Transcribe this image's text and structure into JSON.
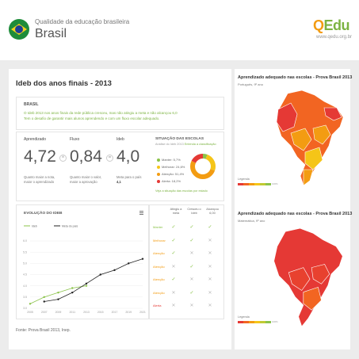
{
  "header": {
    "subtitle": "Qualidade da educação brasileira",
    "title": "Brasil",
    "logo_q": "Q",
    "logo_rest": "Edu",
    "site": "www.qedu.org.br"
  },
  "ideb": {
    "title": "Ideb dos anos finais - 2013",
    "info_label": "BRASIL",
    "info_text_1": "O Ideb 2013 nos anos finais da rede pública cresceu, mas não atingiu a meta e não alcançou 6,0",
    "info_text_2": "Tem o desafio de garantir mais alunos aprendendo e com um fluxo escolar adequado.",
    "metrics": [
      {
        "label": "Aprendizado",
        "value": "4,72",
        "desc": "Quanto maior a nota, maior o aprendizado"
      },
      {
        "label": "Fluxo",
        "value": "0,84",
        "desc": "Quanto maior o valor, maior a aprovação"
      },
      {
        "label": "Ideb",
        "value": "4,0",
        "desc": "Meta para o país",
        "desc_value": "4,1"
      }
    ],
    "op_times": "×",
    "op_equals": "=",
    "situacao": {
      "title": "SITUAÇÃO DAS ESCOLAS",
      "subtitle": "Análise do Ideb 2013",
      "subtitle_link": "Entenda a classificação",
      "items": [
        {
          "label": "Manter: 5,7%",
          "color": "#8bc34a"
        },
        {
          "label": "Melhorar: 24,6%",
          "color": "#f5c518"
        },
        {
          "label": "Atenção: 51,4%",
          "color": "#f39c12"
        },
        {
          "label": "Alerta: 18,2%",
          "color": "#e53935"
        }
      ],
      "footer": "Veja a situação das escolas por estado"
    }
  },
  "chart_data": {
    "type": "line",
    "title": "EVOLUÇÃO DO IDEB",
    "x": [
      "2005",
      "2007",
      "2009",
      "2011",
      "2013",
      "2015",
      "2017",
      "2019",
      "2021"
    ],
    "series": [
      {
        "name": "Ideb",
        "color": "#8bc34a",
        "values": [
          3.2,
          3.5,
          3.7,
          3.9,
          4.0,
          null,
          null,
          null,
          null
        ]
      },
      {
        "name": "Meta do país",
        "color": "#222222",
        "values": [
          null,
          3.3,
          3.4,
          3.7,
          4.1,
          4.5,
          4.7,
          5.0,
          5.2
        ]
      }
    ],
    "ylim": [
      3.0,
      6.0
    ],
    "yticks": [
      "6.0",
      "5.5",
      "5.0",
      "4.5",
      "4.0",
      "3.5",
      "3.0"
    ]
  },
  "table": {
    "headers": [
      "Atingiu a meta",
      "Cresceu o Ideb",
      "Alcançou 6,00"
    ],
    "rows": [
      {
        "label": "Manter",
        "color": "#8bc34a",
        "marks": [
          "check",
          "check",
          "check"
        ]
      },
      {
        "label": "Melhorar",
        "color": "#f39c12",
        "marks": [
          "check",
          "check",
          "cross"
        ]
      },
      {
        "label": "Atenção",
        "color": "#f39c12",
        "marks": [
          "check",
          "cross",
          "cross"
        ]
      },
      {
        "label": "Atenção",
        "color": "#f39c12",
        "marks": [
          "cross",
          "check",
          "cross"
        ]
      },
      {
        "label": "Atenção",
        "color": "#f39c12",
        "marks": [
          "check",
          "cross",
          "cross"
        ]
      },
      {
        "label": "Atenção",
        "color": "#f39c12",
        "marks": [
          "cross",
          "check",
          "cross"
        ]
      },
      {
        "label": "Alerta",
        "color": "#e53935",
        "marks": [
          "cross",
          "cross",
          "cross"
        ]
      }
    ],
    "check_glyph": "✓",
    "cross_glyph": "✕"
  },
  "source": "Fonte: Prova Brasil 2013, Inep.",
  "maps": [
    {
      "title": "Aprendizado adequado nas escolas - Prova Brasil 2013",
      "subtitle": "Português, 9º ano",
      "legend": "Legenda",
      "legend_end": "100%"
    },
    {
      "title": "Aprendizado adequado nas escolas - Prova Brasil 2013",
      "subtitle": "Matemática, 9º ano",
      "legend": "Legenda",
      "legend_end": "100%"
    }
  ],
  "legend_colors": [
    "#e53935",
    "#f26522",
    "#f39c12",
    "#f5c518",
    "#c0ca33",
    "#8bc34a"
  ]
}
